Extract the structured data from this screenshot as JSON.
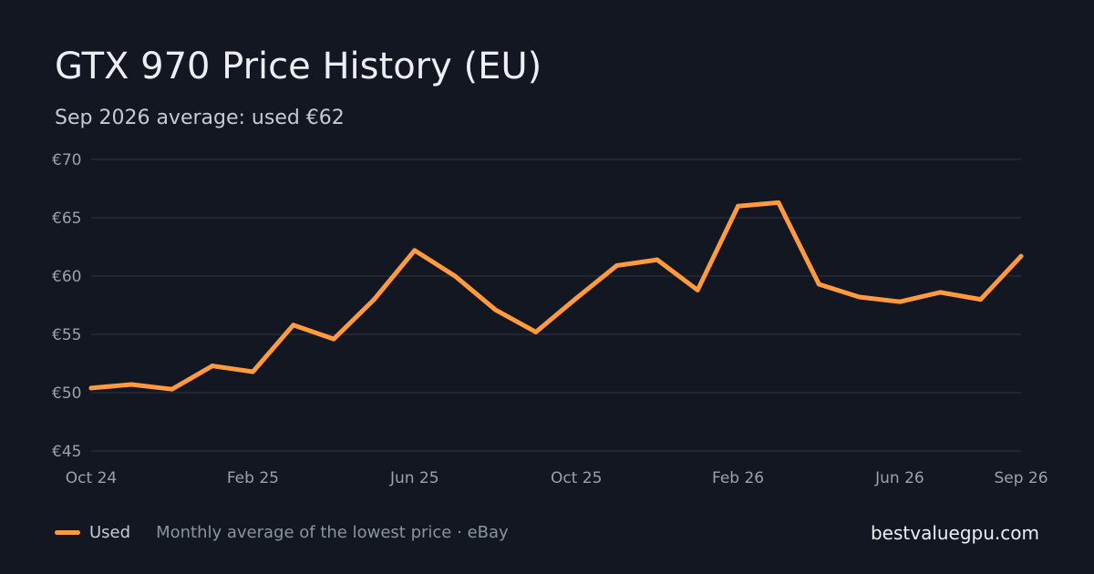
{
  "header": {
    "title": "GTX 970 Price History (EU)",
    "subtitle": "Sep 2026 average: used €62"
  },
  "footer": {
    "legend_label": "Used",
    "note": "Monthly average of the lowest price · eBay",
    "brand": "bestvaluegpu.com"
  },
  "colors": {
    "background": "#131722",
    "series": "#ff9a3e",
    "grid": "#262c38"
  },
  "chart_data": {
    "type": "line",
    "title": "GTX 970 Price History (EU)",
    "subtitle": "Sep 2026 average: used €62",
    "x": [
      "2024-10",
      "2024-11",
      "2024-12",
      "2025-01",
      "2025-02",
      "2025-03",
      "2025-04",
      "2025-05",
      "2025-06",
      "2025-07",
      "2025-08",
      "2025-09",
      "2025-10",
      "2025-11",
      "2025-12",
      "2026-01",
      "2026-02",
      "2026-03",
      "2026-04",
      "2026-05",
      "2026-06",
      "2026-07",
      "2026-08",
      "2026-09"
    ],
    "series": [
      {
        "name": "Used",
        "values": [
          50.4,
          50.7,
          50.3,
          52.3,
          51.8,
          55.8,
          54.6,
          58.0,
          62.2,
          60.0,
          57.1,
          55.2,
          58.1,
          60.9,
          61.4,
          58.8,
          66.0,
          66.3,
          59.3,
          58.2,
          57.8,
          58.6,
          58.0,
          61.7
        ]
      }
    ],
    "x_ticks": [
      "Oct 24",
      "Feb 25",
      "Jun 25",
      "Oct 25",
      "Feb 26",
      "Jun 26",
      "Sep 26"
    ],
    "x_tick_positions": [
      "2024-10",
      "2025-02",
      "2025-06",
      "2025-10",
      "2026-02",
      "2026-06",
      "2026-09"
    ],
    "y_ticks": [
      "€70",
      "€65",
      "€60",
      "€55",
      "€50",
      "€45"
    ],
    "y_tick_values": [
      70,
      65,
      60,
      55,
      50,
      45
    ],
    "ylim": [
      45,
      70
    ],
    "ylabel": "",
    "xlabel": "",
    "grid": true,
    "legend": "bottom-left"
  }
}
